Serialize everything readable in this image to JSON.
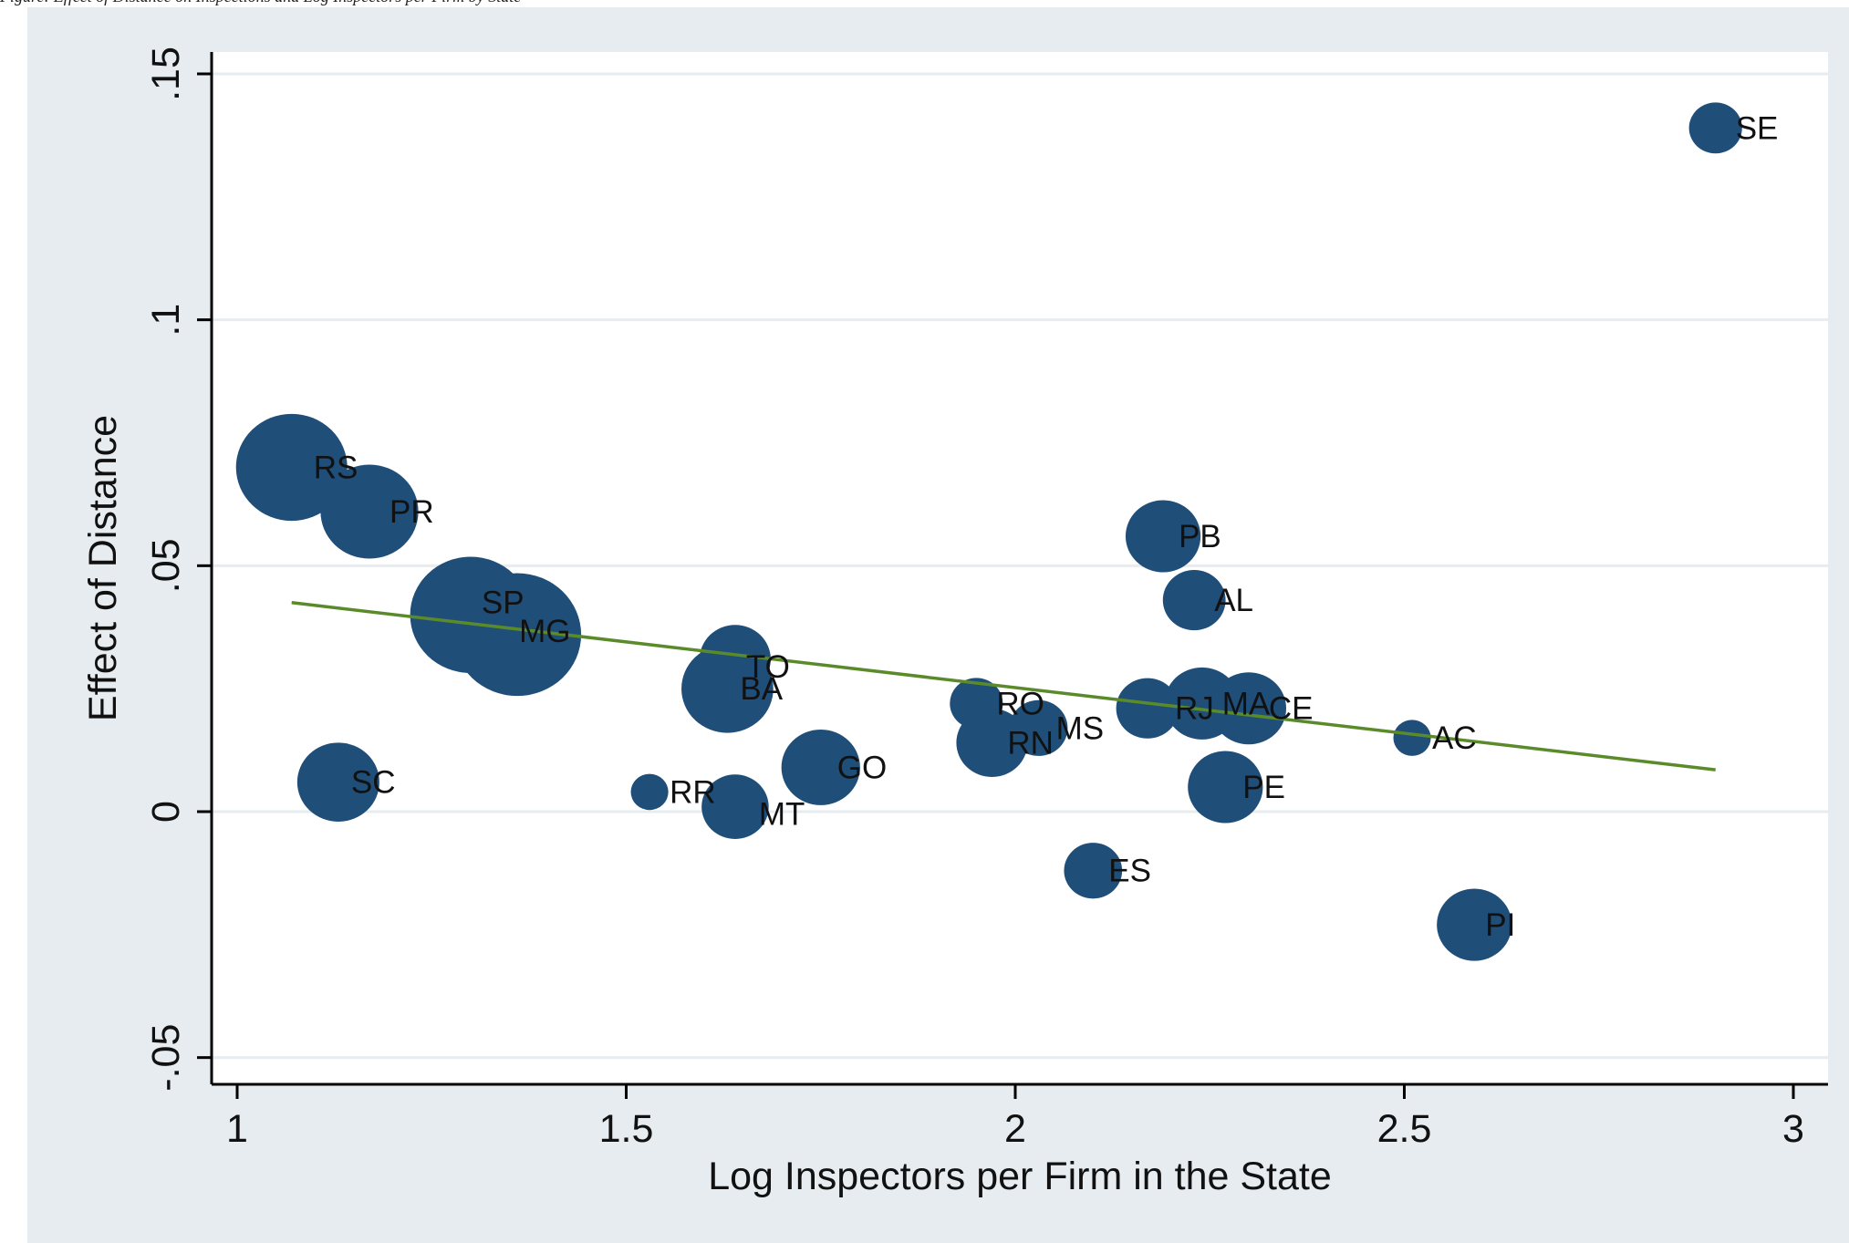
{
  "caption": "Figure: Effect of Distance on Inspections and Log Inspectors per Firm by State",
  "colors": {
    "outer_background": "#e6ecef",
    "plot_background": "#ffffff",
    "gridline": "#e6ecef",
    "marker": "#1f4e79",
    "fit_line": "#5a8a2a",
    "axis": "#000000"
  },
  "chart_data": {
    "type": "scatter",
    "title": "",
    "xlabel": "Log Inspectors per Firm in the State",
    "ylabel": "Effect of Distance",
    "xlim": [
      0.95,
      3.03
    ],
    "ylim": [
      -0.056,
      0.155
    ],
    "xticks": [
      1,
      1.5,
      2,
      2.5,
      3
    ],
    "xtick_labels": [
      "1",
      "1.5",
      "2",
      "2.5",
      "3"
    ],
    "yticks": [
      -0.05,
      0,
      0.05,
      0.1,
      0.15
    ],
    "ytick_labels": [
      "-.05",
      "0",
      ".05",
      ".1",
      ".15"
    ],
    "grid": true,
    "legend": "none",
    "marker_size_note": "bubble size weighted",
    "points": [
      {
        "label": "RS",
        "x": 1.07,
        "y": 0.07,
        "size": 22
      },
      {
        "label": "PR",
        "x": 1.17,
        "y": 0.061,
        "size": 17
      },
      {
        "label": "SP",
        "x": 1.3,
        "y": 0.04,
        "size": 26
      },
      {
        "label": "MG",
        "x": 1.36,
        "y": 0.036,
        "size": 29
      },
      {
        "label": "SC",
        "x": 1.13,
        "y": 0.006,
        "size": 12
      },
      {
        "label": "RR",
        "x": 1.53,
        "y": 0.004,
        "size": 2.5
      },
      {
        "label": "MT",
        "x": 1.64,
        "y": 0.001,
        "size": 8
      },
      {
        "label": "TO",
        "x": 1.64,
        "y": 0.031,
        "size": 9
      },
      {
        "label": "BA",
        "x": 1.63,
        "y": 0.025,
        "size": 15
      },
      {
        "label": "GO",
        "x": 1.75,
        "y": 0.009,
        "size": 11
      },
      {
        "label": "RO",
        "x": 1.95,
        "y": 0.022,
        "size": 5
      },
      {
        "label": "RN",
        "x": 1.97,
        "y": 0.014,
        "size": 9
      },
      {
        "label": "MS",
        "x": 2.03,
        "y": 0.017,
        "size": 6
      },
      {
        "label": "ES",
        "x": 2.1,
        "y": -0.012,
        "size": 6
      },
      {
        "label": "PB",
        "x": 2.19,
        "y": 0.056,
        "size": 10
      },
      {
        "label": "AL",
        "x": 2.23,
        "y": 0.043,
        "size": 7
      },
      {
        "label": "RJ",
        "x": 2.17,
        "y": 0.021,
        "size": 7
      },
      {
        "label": "MA",
        "x": 2.24,
        "y": 0.022,
        "size": 10
      },
      {
        "label": "CE",
        "x": 2.3,
        "y": 0.021,
        "size": 10
      },
      {
        "label": "PE",
        "x": 2.27,
        "y": 0.005,
        "size": 10
      },
      {
        "label": "AC",
        "x": 2.51,
        "y": 0.015,
        "size": 2.5
      },
      {
        "label": "PI",
        "x": 2.59,
        "y": -0.023,
        "size": 10
      },
      {
        "label": "SE",
        "x": 2.9,
        "y": 0.139,
        "size": 5
      }
    ],
    "fit_line": {
      "x": [
        1.07,
        2.9
      ],
      "y": [
        0.0425,
        0.0085
      ]
    }
  }
}
